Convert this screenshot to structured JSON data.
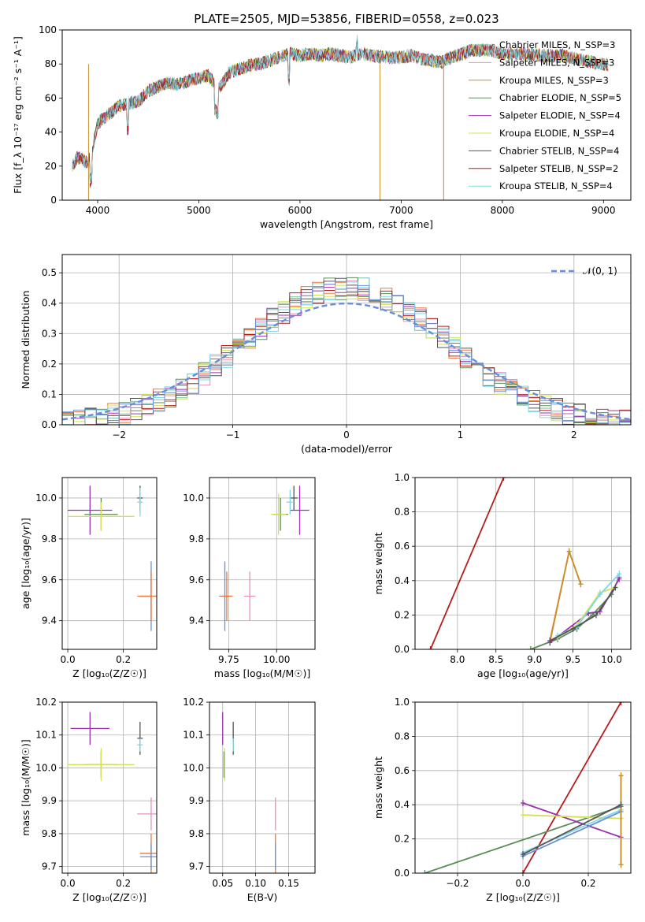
{
  "figure": {
    "title": "PLATE=2505, MJD=53856, FIBERID=0558, z=0.023"
  },
  "chart_data": [
    {
      "id": "spectrum",
      "type": "line",
      "xlabel": "wavelength [Angstrom, rest frame]",
      "ylabel": "Flux [f_λ 10⁻¹⁷ erg cm⁻² s⁻¹ A⁻¹]",
      "xlim": [
        3650,
        9270
      ],
      "ylim": [
        0,
        100
      ],
      "xticks": [
        4000,
        5000,
        6000,
        7000,
        8000,
        9000
      ],
      "yticks": [
        0,
        20,
        40,
        60,
        80,
        100
      ],
      "grid": false,
      "legend_position": "right",
      "continuum": {
        "x": [
          3750,
          3800,
          3850,
          3900,
          3950,
          4000,
          4100,
          4200,
          4300,
          4400,
          4500,
          4600,
          4700,
          4800,
          4900,
          5000,
          5100,
          5200,
          5300,
          5400,
          5500,
          5600,
          5700,
          5800,
          5900,
          6000,
          6100,
          6200,
          6300,
          6400,
          6500,
          6600,
          6700,
          6800,
          6900,
          7000,
          7100,
          7200,
          7300,
          7400,
          7500,
          7600,
          7700,
          7800,
          7900,
          8000,
          8200,
          8400,
          8600,
          8800,
          9000,
          9050
        ],
        "y": [
          20,
          25,
          24,
          22,
          30,
          45,
          50,
          55,
          57,
          58,
          64,
          67,
          69,
          68,
          70,
          72,
          73,
          65,
          75,
          77,
          79,
          80,
          82,
          84,
          86,
          85,
          86,
          85,
          86,
          85,
          84,
          86,
          85,
          84,
          84,
          84,
          85,
          83,
          82,
          81,
          84,
          86,
          88,
          88,
          88,
          86,
          86,
          85,
          85,
          82,
          80,
          79
        ]
      },
      "series": [
        {
          "name": "Chabrier MILES, N_SSP=3",
          "color": "#6fbfa9"
        },
        {
          "name": "Salpeter MILES, N_SSP=3",
          "color": "#e88fbc"
        },
        {
          "name": "Kroupa MILES, N_SSP=3",
          "color": "#c8902a"
        },
        {
          "name": "Chabrier ELODIE, N_SSP=5",
          "color": "#5b8a5b"
        },
        {
          "name": "Salpeter ELODIE, N_SSP=4",
          "color": "#9b30b0"
        },
        {
          "name": "Kroupa ELODIE, N_SSP=4",
          "color": "#d4e157"
        },
        {
          "name": "Chabrier STELIB, N_SSP=4",
          "color": "#555555"
        },
        {
          "name": "Salpeter STELIB, N_SSP=2",
          "color": "#b71c1c"
        },
        {
          "name": "Kroupa STELIB, N_SSP=4",
          "color": "#7fd8e8"
        }
      ]
    },
    {
      "id": "residuals",
      "type": "histogram",
      "xlabel": "(data-model)/error",
      "ylabel": "Normed distribution",
      "xlim": [
        -2.5,
        2.5
      ],
      "ylim": [
        0,
        0.56
      ],
      "xticks": [
        -2,
        -1,
        0,
        1,
        2
      ],
      "yticks": [
        0.0,
        0.1,
        0.2,
        0.3,
        0.4,
        0.5
      ],
      "grid": true,
      "legend_position": "top-right",
      "gaussian_label": "𝒩(0, 1)",
      "bin_width": 0.1,
      "bin_start": -2.5,
      "histogram_colors": [
        "#6fbfa9",
        "#e88fbc",
        "#e8783a",
        "#5b8a5b",
        "#9b30b0",
        "#d4e157",
        "#555555",
        "#b71c1c",
        "#7fd8e8",
        "#6a8fd8"
      ]
    },
    {
      "id": "age-metallicity",
      "type": "scatter",
      "xlabel": "Z [log₁₀(Z/Z☉)]",
      "ylabel": "age  [log₁₀(age/yr)]",
      "xlim": [
        -0.02,
        0.32
      ],
      "ylim": [
        9.26,
        10.1
      ],
      "xticks": [
        0.0,
        0.2
      ],
      "yticks": [
        9.4,
        9.6,
        9.8,
        10.0
      ],
      "grid": true,
      "points": [
        {
          "x": 0.08,
          "y": 9.94,
          "xerr": 0.08,
          "yerr": 0.12,
          "color": "#9b30b0"
        },
        {
          "x": 0.12,
          "y": 9.92,
          "xerr": 0.06,
          "yerr": 0.08,
          "color": "#5b8a5b"
        },
        {
          "x": 0.12,
          "y": 9.91,
          "xerr": 0.12,
          "yerr": 0.07,
          "color": "#d4e157"
        },
        {
          "x": 0.26,
          "y": 10.0,
          "xerr": 0.01,
          "yerr": 0.06,
          "color": "#555555"
        },
        {
          "x": 0.26,
          "y": 9.98,
          "xerr": 0.01,
          "yerr": 0.07,
          "color": "#7fd8e8"
        },
        {
          "x": 0.3,
          "y": 9.52,
          "xerr": 0.04,
          "yerr": 0.17,
          "color": "#6a8fd8"
        },
        {
          "x": 0.3,
          "y": 9.52,
          "xerr": 0.05,
          "yerr": 0.12,
          "color": "#e8783a"
        }
      ]
    },
    {
      "id": "age-mass",
      "type": "scatter",
      "xlabel": "mass [log₁₀(M/M☉)]",
      "ylabel": "",
      "xlim": [
        9.65,
        10.2
      ],
      "ylim": [
        9.26,
        10.1
      ],
      "xticks": [
        9.75,
        10.0
      ],
      "yticks": [
        9.4,
        9.6,
        9.8,
        10.0
      ],
      "grid": true,
      "points": [
        {
          "x": 10.12,
          "y": 9.94,
          "xerr": 0.05,
          "yerr": 0.12,
          "color": "#9b30b0"
        },
        {
          "x": 10.02,
          "y": 9.92,
          "xerr": 0.04,
          "yerr": 0.08,
          "color": "#5b8a5b"
        },
        {
          "x": 10.01,
          "y": 9.92,
          "xerr": 0.04,
          "yerr": 0.1,
          "color": "#d4e157"
        },
        {
          "x": 10.09,
          "y": 10.0,
          "xerr": 0.02,
          "yerr": 0.06,
          "color": "#555555"
        },
        {
          "x": 10.07,
          "y": 9.98,
          "xerr": 0.02,
          "yerr": 0.06,
          "color": "#7fd8e8"
        },
        {
          "x": 9.73,
          "y": 9.52,
          "xerr": 0.03,
          "yerr": 0.17,
          "color": "#6a8fd8"
        },
        {
          "x": 9.74,
          "y": 9.52,
          "xerr": 0.03,
          "yerr": 0.12,
          "color": "#e8783a"
        },
        {
          "x": 9.86,
          "y": 9.52,
          "xerr": 0.03,
          "yerr": 0.12,
          "color": "#e88fbc"
        }
      ]
    },
    {
      "id": "massweight-age",
      "type": "line",
      "xlabel": "age  [log₁₀(age/yr)]",
      "ylabel": "mass weight",
      "xlim": [
        7.45,
        10.25
      ],
      "ylim": [
        0,
        1
      ],
      "xticks": [
        8.0,
        8.5,
        9.0,
        9.5,
        10.0
      ],
      "yticks": [
        0.0,
        0.2,
        0.4,
        0.6,
        0.8,
        1.0
      ],
      "grid": true,
      "series": [
        {
          "color": "#b71c1c",
          "x": [
            7.65,
            8.6
          ],
          "y": [
            0.0,
            1.0
          ]
        },
        {
          "color": "#e8783a",
          "x": [
            9.2,
            9.45,
            9.6
          ],
          "y": [
            0.05,
            0.57,
            0.38
          ]
        },
        {
          "color": "#c8902a",
          "x": [
            9.2,
            9.45,
            9.6
          ],
          "y": [
            0.04,
            0.57,
            0.38
          ]
        },
        {
          "color": "#5b8a5b",
          "x": [
            8.95,
            9.3,
            9.55,
            9.75,
            10.0,
            10.1
          ],
          "y": [
            0.0,
            0.06,
            0.12,
            0.2,
            0.32,
            0.42
          ]
        },
        {
          "color": "#9b30b0",
          "x": [
            9.2,
            9.7,
            9.85,
            10.1
          ],
          "y": [
            0.04,
            0.21,
            0.22,
            0.41
          ]
        },
        {
          "color": "#d4e157",
          "x": [
            9.3,
            9.55,
            9.85,
            10.05
          ],
          "y": [
            0.07,
            0.14,
            0.33,
            0.36
          ]
        },
        {
          "color": "#7fd8e8",
          "x": [
            9.3,
            9.55,
            9.85,
            10.1
          ],
          "y": [
            0.08,
            0.13,
            0.32,
            0.44
          ]
        },
        {
          "color": "#555555",
          "x": [
            9.2,
            9.5,
            9.8,
            10.05
          ],
          "y": [
            0.05,
            0.12,
            0.2,
            0.36
          ]
        }
      ]
    },
    {
      "id": "mass-metallicity",
      "type": "scatter",
      "xlabel": "Z [log₁₀(Z/Z☉)]",
      "ylabel": "mass [log₁₀(M/M☉)]",
      "xlim": [
        -0.02,
        0.32
      ],
      "ylim": [
        9.68,
        10.2
      ],
      "xticks": [
        0.0,
        0.2
      ],
      "yticks": [
        9.7,
        9.8,
        9.9,
        10.0,
        10.1,
        10.2
      ],
      "grid": true,
      "points": [
        {
          "x": 0.08,
          "y": 10.12,
          "xerr": 0.07,
          "yerr": 0.05,
          "color": "#9b30b0"
        },
        {
          "x": 0.12,
          "y": 10.01,
          "xerr": 0.06,
          "yerr": 0.04,
          "color": "#5b8a5b"
        },
        {
          "x": 0.12,
          "y": 10.01,
          "xerr": 0.12,
          "yerr": 0.05,
          "color": "#d4e157"
        },
        {
          "x": 0.26,
          "y": 10.09,
          "xerr": 0.01,
          "yerr": 0.05,
          "color": "#555555"
        },
        {
          "x": 0.26,
          "y": 10.07,
          "xerr": 0.01,
          "yerr": 0.02,
          "color": "#7fd8e8"
        },
        {
          "x": 0.3,
          "y": 9.86,
          "xerr": 0.05,
          "yerr": 0.05,
          "color": "#e88fbc"
        },
        {
          "x": 0.3,
          "y": 9.74,
          "xerr": 0.04,
          "yerr": 0.06,
          "color": "#e8783a"
        },
        {
          "x": 0.3,
          "y": 9.73,
          "xerr": 0.04,
          "yerr": 0.04,
          "color": "#6a8fd8"
        }
      ]
    },
    {
      "id": "mass-ebv",
      "type": "scatter",
      "xlabel": "E(B-V)",
      "ylabel": "",
      "xlim": [
        0.03,
        0.19
      ],
      "ylim": [
        9.68,
        10.2
      ],
      "xticks": [
        0.05,
        0.1,
        0.15
      ],
      "yticks": [
        9.7,
        9.8,
        9.9,
        10.0,
        10.1,
        10.2
      ],
      "grid": true,
      "points": [
        {
          "x": 0.05,
          "y": 10.12,
          "xerr": 0.0,
          "yerr": 0.05,
          "color": "#9b30b0"
        },
        {
          "x": 0.052,
          "y": 10.01,
          "xerr": 0.0,
          "yerr": 0.04,
          "color": "#5b8a5b"
        },
        {
          "x": 0.053,
          "y": 10.01,
          "xerr": 0.0,
          "yerr": 0.05,
          "color": "#d4e157"
        },
        {
          "x": 0.066,
          "y": 10.09,
          "xerr": 0.0,
          "yerr": 0.05,
          "color": "#555555"
        },
        {
          "x": 0.066,
          "y": 10.07,
          "xerr": 0.0,
          "yerr": 0.02,
          "color": "#7fd8e8"
        },
        {
          "x": 0.13,
          "y": 9.86,
          "xerr": 0.0,
          "yerr": 0.05,
          "color": "#e88fbc"
        },
        {
          "x": 0.13,
          "y": 9.74,
          "xerr": 0.0,
          "yerr": 0.06,
          "color": "#e8783a"
        },
        {
          "x": 0.13,
          "y": 9.73,
          "xerr": 0.0,
          "yerr": 0.04,
          "color": "#6a8fd8"
        }
      ]
    },
    {
      "id": "massweight-metallicity",
      "type": "line",
      "xlabel": "Z [log₁₀(Z/Z☉)]",
      "ylabel": "mass weight",
      "xlim": [
        -0.33,
        0.33
      ],
      "ylim": [
        0,
        1
      ],
      "xticks": [
        -0.2,
        0.0,
        0.2
      ],
      "yticks": [
        0.0,
        0.2,
        0.4,
        0.6,
        0.8,
        1.0
      ],
      "grid": true,
      "series": [
        {
          "color": "#b71c1c",
          "x": [
            0.0,
            0.3
          ],
          "y": [
            0.0,
            1.0
          ]
        },
        {
          "color": "#5b8a5b",
          "x": [
            -0.3,
            0.3
          ],
          "y": [
            0.0,
            0.39
          ]
        },
        {
          "color": "#9b30b0",
          "x": [
            0.0,
            0.3
          ],
          "y": [
            0.41,
            0.21
          ]
        },
        {
          "color": "#d4e157",
          "x": [
            0.0,
            0.3
          ],
          "y": [
            0.34,
            0.32
          ]
        },
        {
          "color": "#7fd8e8",
          "x": [
            0.0,
            0.3
          ],
          "y": [
            0.12,
            0.37
          ]
        },
        {
          "color": "#6a8fd8",
          "x": [
            0.0,
            0.3
          ],
          "y": [
            0.1,
            0.36
          ]
        },
        {
          "color": "#e8783a",
          "x": [
            0.3,
            0.3
          ],
          "y": [
            0.05,
            0.57
          ]
        },
        {
          "color": "#c8902a",
          "x": [
            0.3,
            0.3
          ],
          "y": [
            0.05,
            0.57
          ]
        },
        {
          "color": "#555555",
          "x": [
            0.0,
            0.3
          ],
          "y": [
            0.11,
            0.4
          ]
        }
      ]
    }
  ]
}
